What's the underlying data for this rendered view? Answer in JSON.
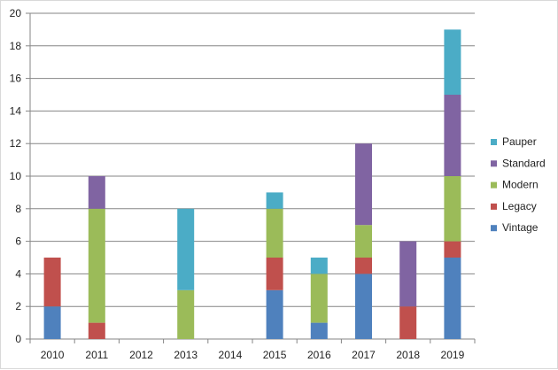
{
  "chart_data": {
    "type": "bar",
    "stacked": true,
    "title": "",
    "xlabel": "",
    "ylabel": "",
    "categories": [
      "2010",
      "2011",
      "2012",
      "2013",
      "2014",
      "2015",
      "2016",
      "2017",
      "2018",
      "2019"
    ],
    "series": [
      {
        "name": "Vintage",
        "color": "#4f81bd",
        "values": [
          2,
          0,
          0,
          0,
          0,
          3,
          1,
          4,
          0,
          5
        ]
      },
      {
        "name": "Legacy",
        "color": "#c0504d",
        "values": [
          3,
          1,
          0,
          0,
          0,
          2,
          0,
          1,
          2,
          1
        ]
      },
      {
        "name": "Modern",
        "color": "#9bbb59",
        "values": [
          0,
          7,
          0,
          3,
          0,
          3,
          3,
          2,
          0,
          4
        ]
      },
      {
        "name": "Standard",
        "color": "#8064a2",
        "values": [
          0,
          2,
          0,
          0,
          0,
          0,
          0,
          5,
          4,
          5
        ]
      },
      {
        "name": "Pauper",
        "color": "#4bacc6",
        "values": [
          0,
          0,
          0,
          5,
          0,
          1,
          1,
          0,
          0,
          4
        ]
      }
    ],
    "ylim": [
      0,
      20
    ],
    "yticks": [
      0,
      2,
      4,
      6,
      8,
      10,
      12,
      14,
      16,
      18,
      20
    ],
    "grid": true,
    "legend_position": "right"
  }
}
